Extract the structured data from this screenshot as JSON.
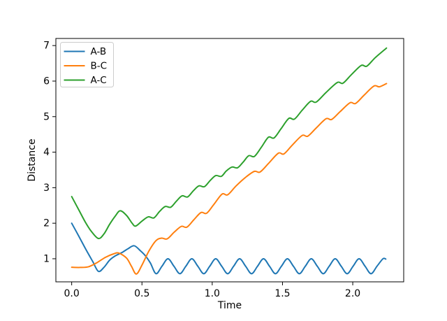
{
  "figure": {
    "background": "#ffffff"
  },
  "chart_data": {
    "type": "line",
    "title": "",
    "xlabel": "Time",
    "ylabel": "Distance",
    "xlim": [
      -0.1125,
      2.3625
    ],
    "ylim": [
      0.35,
      7.2
    ],
    "grid": false,
    "x_ticks": {
      "values": [
        0.0,
        0.5,
        1.0,
        1.5,
        2.0
      ],
      "labels": [
        "0.0",
        "0.5",
        "1.0",
        "1.5",
        "2.0"
      ]
    },
    "y_ticks": {
      "values": [
        1,
        2,
        3,
        4,
        5,
        6,
        7
      ],
      "labels": [
        "1",
        "2",
        "3",
        "4",
        "5",
        "6",
        "7"
      ]
    },
    "axis_color": "#000000",
    "text_color": "#000000",
    "legend": {
      "position": "upper left",
      "border_color": "#cccccc",
      "background": "#ffffff",
      "entries": [
        "A-B",
        "B-C",
        "A-C"
      ]
    },
    "series": [
      {
        "name": "A-B",
        "color": "#1f77b4",
        "points": [
          [
            0,
            2.0
          ],
          [
            0.05,
            1.64
          ],
          [
            0.1,
            1.27
          ],
          [
            0.15,
            0.92
          ],
          [
            0.19,
            0.645
          ],
          [
            0.23,
            0.76
          ],
          [
            0.27,
            0.96
          ],
          [
            0.31,
            1.08
          ],
          [
            0.36,
            1.18
          ],
          [
            0.4,
            1.28
          ],
          [
            0.445,
            1.365
          ],
          [
            0.49,
            1.22
          ],
          [
            0.525,
            1.08
          ],
          [
            0.56,
            0.88
          ],
          [
            0.6,
            0.58
          ],
          [
            0.6425,
            0.79
          ],
          [
            0.685,
            1.0
          ],
          [
            0.7275,
            0.79
          ],
          [
            0.77,
            0.58
          ],
          [
            0.8125,
            0.79
          ],
          [
            0.855,
            1.0
          ],
          [
            0.8975,
            0.79
          ],
          [
            0.94,
            0.58
          ],
          [
            0.9825,
            0.79
          ],
          [
            1.025,
            1.0
          ],
          [
            1.0675,
            0.79
          ],
          [
            1.11,
            0.58
          ],
          [
            1.1525,
            0.79
          ],
          [
            1.195,
            1.0
          ],
          [
            1.2375,
            0.79
          ],
          [
            1.28,
            0.58
          ],
          [
            1.3225,
            0.79
          ],
          [
            1.365,
            1.0
          ],
          [
            1.4075,
            0.79
          ],
          [
            1.45,
            0.58
          ],
          [
            1.4925,
            0.79
          ],
          [
            1.535,
            1.0
          ],
          [
            1.5775,
            0.79
          ],
          [
            1.62,
            0.58
          ],
          [
            1.6625,
            0.79
          ],
          [
            1.705,
            1.0
          ],
          [
            1.7475,
            0.79
          ],
          [
            1.79,
            0.58
          ],
          [
            1.8325,
            0.79
          ],
          [
            1.875,
            1.0
          ],
          [
            1.9175,
            0.79
          ],
          [
            1.96,
            0.58
          ],
          [
            2.0025,
            0.79
          ],
          [
            2.045,
            1.0
          ],
          [
            2.0875,
            0.79
          ],
          [
            2.13,
            0.58
          ],
          [
            2.1725,
            0.79
          ],
          [
            2.215,
            1.0
          ],
          [
            2.235,
            0.99
          ]
        ]
      },
      {
        "name": "B-C",
        "color": "#ff7f0e",
        "points": [
          [
            0,
            0.76
          ],
          [
            0.06,
            0.755
          ],
          [
            0.12,
            0.775
          ],
          [
            0.18,
            0.89
          ],
          [
            0.24,
            1.04
          ],
          [
            0.3,
            1.14
          ],
          [
            0.335,
            1.16
          ],
          [
            0.39,
            1.02
          ],
          [
            0.425,
            0.79
          ],
          [
            0.46,
            0.57
          ],
          [
            0.5,
            0.82
          ],
          [
            0.55,
            1.22
          ],
          [
            0.6,
            1.51
          ],
          [
            0.64,
            1.58
          ],
          [
            0.68,
            1.56
          ],
          [
            0.73,
            1.75
          ],
          [
            0.78,
            1.91
          ],
          [
            0.82,
            1.89
          ],
          [
            0.87,
            2.1
          ],
          [
            0.92,
            2.3
          ],
          [
            0.96,
            2.28
          ],
          [
            1.01,
            2.52
          ],
          [
            1.07,
            2.82
          ],
          [
            1.11,
            2.8
          ],
          [
            1.17,
            3.05
          ],
          [
            1.24,
            3.3
          ],
          [
            1.3,
            3.46
          ],
          [
            1.34,
            3.44
          ],
          [
            1.4,
            3.68
          ],
          [
            1.47,
            3.97
          ],
          [
            1.51,
            3.95
          ],
          [
            1.57,
            4.2
          ],
          [
            1.64,
            4.47
          ],
          [
            1.68,
            4.45
          ],
          [
            1.74,
            4.68
          ],
          [
            1.81,
            4.94
          ],
          [
            1.85,
            4.92
          ],
          [
            1.91,
            5.14
          ],
          [
            1.98,
            5.39
          ],
          [
            2.02,
            5.37
          ],
          [
            2.08,
            5.6
          ],
          [
            2.15,
            5.86
          ],
          [
            2.19,
            5.84
          ],
          [
            2.24,
            5.93
          ]
        ]
      },
      {
        "name": "A-C",
        "color": "#2ca02c",
        "points": [
          [
            0,
            2.75
          ],
          [
            0.05,
            2.38
          ],
          [
            0.1,
            2.01
          ],
          [
            0.14,
            1.77
          ],
          [
            0.19,
            1.57
          ],
          [
            0.23,
            1.7
          ],
          [
            0.27,
            1.97
          ],
          [
            0.31,
            2.2
          ],
          [
            0.345,
            2.35
          ],
          [
            0.39,
            2.22
          ],
          [
            0.43,
            2.0
          ],
          [
            0.455,
            1.92
          ],
          [
            0.5,
            2.06
          ],
          [
            0.545,
            2.18
          ],
          [
            0.585,
            2.15
          ],
          [
            0.625,
            2.33
          ],
          [
            0.665,
            2.47
          ],
          [
            0.705,
            2.45
          ],
          [
            0.745,
            2.62
          ],
          [
            0.785,
            2.77
          ],
          [
            0.825,
            2.74
          ],
          [
            0.865,
            2.91
          ],
          [
            0.905,
            3.05
          ],
          [
            0.945,
            3.03
          ],
          [
            0.985,
            3.2
          ],
          [
            1.025,
            3.34
          ],
          [
            1.065,
            3.32
          ],
          [
            1.1,
            3.47
          ],
          [
            1.14,
            3.58
          ],
          [
            1.18,
            3.56
          ],
          [
            1.22,
            3.72
          ],
          [
            1.26,
            3.9
          ],
          [
            1.3,
            3.88
          ],
          [
            1.35,
            4.14
          ],
          [
            1.4,
            4.42
          ],
          [
            1.44,
            4.4
          ],
          [
            1.49,
            4.66
          ],
          [
            1.545,
            4.95
          ],
          [
            1.585,
            4.93
          ],
          [
            1.64,
            5.18
          ],
          [
            1.7,
            5.43
          ],
          [
            1.74,
            5.41
          ],
          [
            1.81,
            5.68
          ],
          [
            1.89,
            5.96
          ],
          [
            1.93,
            5.94
          ],
          [
            1.99,
            6.18
          ],
          [
            2.06,
            6.44
          ],
          [
            2.1,
            6.42
          ],
          [
            2.16,
            6.66
          ],
          [
            2.24,
            6.93
          ]
        ]
      }
    ]
  }
}
